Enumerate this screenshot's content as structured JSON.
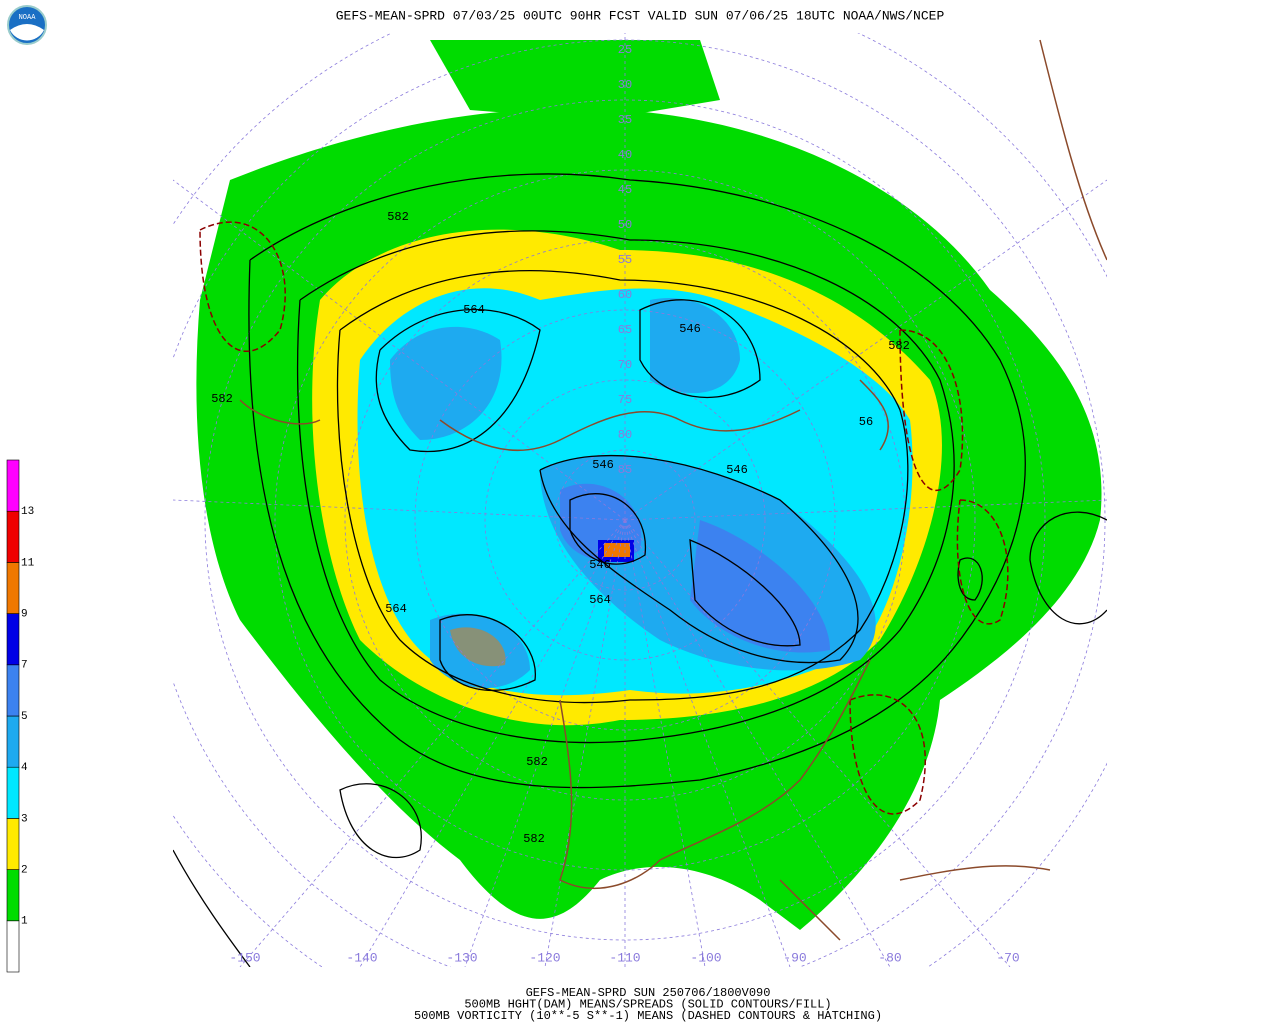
{
  "header": {
    "title": "GEFS-MEAN-SPRD 07/03/25 00UTC 90HR FCST VALID SUN 07/06/25 18UTC NOAA/NWS/NCEP",
    "logo": "NOAA"
  },
  "colorbar": {
    "labels": [
      "1",
      "2",
      "3",
      "4",
      "5",
      "7",
      "9",
      "11",
      "13"
    ],
    "colors": [
      "#ffffff",
      "#00dc00",
      "#ffea00",
      "#00e8ff",
      "#1eaaf0",
      "#3c82f0",
      "#0000e6",
      "#f07800",
      "#f00000",
      "#ff00ff"
    ]
  },
  "map": {
    "latitude_labels": [
      "25",
      "30",
      "35",
      "40",
      "45",
      "50",
      "55",
      "60",
      "65",
      "70",
      "75",
      "80",
      "85"
    ],
    "longitude_labels": [
      "-150",
      "-140",
      "-130",
      "-120",
      "-110",
      "-100",
      "-90",
      "-80",
      "-70"
    ],
    "contour_labels": [
      "582",
      "564",
      "546",
      "582",
      "56",
      "582",
      "546",
      "546",
      "546",
      "564",
      "564",
      "582",
      "582"
    ]
  },
  "footer": {
    "lines": [
      "GEFS-MEAN-SPRD SUN 250706/1800V090",
      "500MB HGHT(DAM) MEANS/SPREADS (SOLID CONTOURS/FILL)",
      "500MB VORTICITY (10**-5 S**-1) MEANS (DASHED CONTOURS & HATCHING)"
    ]
  }
}
